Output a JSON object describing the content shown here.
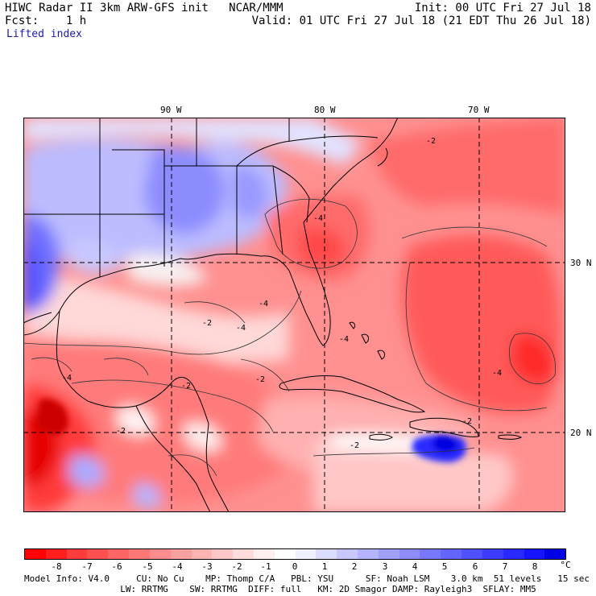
{
  "header": {
    "line1_left": "HIWC Radar II 3km ARW-GFS init   NCAR/MMM",
    "line1_right": "Init: 00 UTC Fri 27 Jul 18",
    "line2_left": "Fcst:    1 h",
    "line2_right": "Valid: 01 UTC Fri 27 Jul 18 (21 EDT Thu 26 Jul 18)",
    "field_name": "Lifted index"
  },
  "map": {
    "lon_labels": [
      "90 W",
      "80 W",
      "70 W"
    ],
    "lat_labels": [
      "30 N",
      "20 N"
    ],
    "contour_labels": [
      "-2",
      "-2",
      "-2",
      "-2",
      "-2",
      "-2",
      "-2",
      "-4",
      "-4",
      "-4",
      "-4",
      "-4",
      "-4"
    ]
  },
  "colorbar": {
    "ticks": [
      "-8",
      "-7",
      "-6",
      "-5",
      "-4",
      "-3",
      "-2",
      "-1",
      "0",
      "1",
      "2",
      "3",
      "4",
      "5",
      "6",
      "7",
      "8"
    ],
    "unit": "°C",
    "colors": [
      "#ff0000",
      "#ff1e1e",
      "#ff3c3c",
      "#ff5050",
      "#ff6464",
      "#ff7878",
      "#ff8c8c",
      "#ffa0a0",
      "#ffb4b4",
      "#ffc8c8",
      "#ffdcdc",
      "#fff0f0",
      "#ffffff",
      "#f0f0ff",
      "#dcdcff",
      "#c8c8ff",
      "#b4b4ff",
      "#a0a0ff",
      "#8c8cff",
      "#7878ff",
      "#6464ff",
      "#5050ff",
      "#3c3cff",
      "#2828ff",
      "#1414ff",
      "#0000e6"
    ]
  },
  "footer": {
    "line1": "Model Info: V4.0     CU: No Cu    MP: Thomp C/A   PBL: YSU      SF: Noah LSM    3.0 km  51 levels   15 sec",
    "line2": "                  LW: RRTMG    SW: RRTMG  DIFF: full   KM: 2D Smagor DAMP: Rayleigh3  SFLAY: MM5"
  }
}
